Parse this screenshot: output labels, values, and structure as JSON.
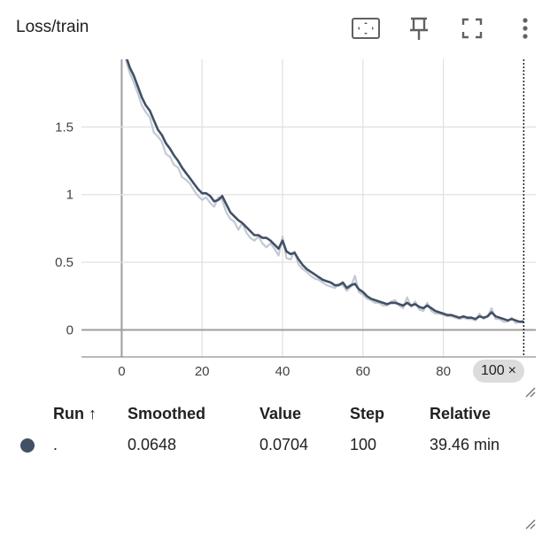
{
  "card": {
    "title": "Loss/train"
  },
  "toolbar": {
    "icons": [
      "fit-domain-icon",
      "pin-icon",
      "fullscreen-icon",
      "more-vert-icon"
    ]
  },
  "hover": {
    "step_label": "100",
    "close_glyph": "×"
  },
  "table": {
    "headers": {
      "run": "Run ↑",
      "smoothed": "Smoothed",
      "value": "Value",
      "step": "Step",
      "relative": "Relative"
    },
    "rows": [
      {
        "run": ".",
        "color": "#425066",
        "smoothed": "0.0648",
        "value": "0.0704",
        "step": "100",
        "relative": "39.46 min"
      }
    ]
  },
  "chart_data": {
    "type": "line",
    "title": "Loss/train",
    "xlabel": "",
    "ylabel": "",
    "xlim": [
      -10,
      103
    ],
    "ylim": [
      -0.2,
      2.0
    ],
    "xticks": [
      "0",
      "20",
      "40",
      "60",
      "80"
    ],
    "yticks": [
      "0",
      "0.5",
      "1",
      "1.5"
    ],
    "grid": true,
    "hover_step": 100,
    "colors": {
      "smoothed": "#425066",
      "raw": "#c3c9d4"
    },
    "series": [
      {
        "role": "smoothed",
        "x": [
          1,
          2,
          3,
          4,
          5,
          6,
          7,
          8,
          9,
          10,
          11,
          12,
          13,
          14,
          15,
          16,
          17,
          18,
          19,
          20,
          21,
          22,
          23,
          24,
          25,
          26,
          27,
          28,
          29,
          30,
          31,
          32,
          33,
          34,
          35,
          36,
          37,
          38,
          39,
          40,
          41,
          42,
          43,
          44,
          45,
          46,
          47,
          48,
          49,
          50,
          51,
          52,
          53,
          54,
          55,
          56,
          57,
          58,
          59,
          60,
          61,
          62,
          63,
          64,
          65,
          66,
          67,
          68,
          69,
          70,
          71,
          72,
          73,
          74,
          75,
          76,
          77,
          78,
          79,
          80,
          81,
          82,
          83,
          84,
          85,
          86,
          87,
          88,
          89,
          90,
          91,
          92,
          93,
          94,
          95,
          96,
          97,
          98,
          99,
          100
        ],
        "values": [
          2.03,
          1.94,
          1.88,
          1.8,
          1.72,
          1.66,
          1.62,
          1.55,
          1.48,
          1.44,
          1.38,
          1.34,
          1.29,
          1.25,
          1.2,
          1.16,
          1.12,
          1.08,
          1.04,
          1.01,
          1.01,
          0.99,
          0.95,
          0.96,
          0.99,
          0.93,
          0.87,
          0.84,
          0.81,
          0.79,
          0.76,
          0.73,
          0.7,
          0.7,
          0.68,
          0.68,
          0.66,
          0.63,
          0.6,
          0.66,
          0.58,
          0.56,
          0.57,
          0.52,
          0.48,
          0.45,
          0.43,
          0.41,
          0.39,
          0.37,
          0.36,
          0.35,
          0.33,
          0.33,
          0.35,
          0.31,
          0.33,
          0.34,
          0.3,
          0.28,
          0.25,
          0.23,
          0.22,
          0.21,
          0.2,
          0.19,
          0.2,
          0.2,
          0.19,
          0.18,
          0.2,
          0.18,
          0.19,
          0.17,
          0.16,
          0.18,
          0.16,
          0.14,
          0.13,
          0.12,
          0.11,
          0.11,
          0.1,
          0.09,
          0.1,
          0.09,
          0.09,
          0.08,
          0.1,
          0.09,
          0.1,
          0.13,
          0.1,
          0.09,
          0.08,
          0.07,
          0.08,
          0.07,
          0.06,
          0.06
        ]
      },
      {
        "role": "raw",
        "x": [
          1,
          2,
          3,
          4,
          5,
          6,
          7,
          8,
          9,
          10,
          11,
          12,
          13,
          14,
          15,
          16,
          17,
          18,
          19,
          20,
          21,
          22,
          23,
          24,
          25,
          26,
          27,
          28,
          29,
          30,
          31,
          32,
          33,
          34,
          35,
          36,
          37,
          38,
          39,
          40,
          41,
          42,
          43,
          44,
          45,
          46,
          47,
          48,
          49,
          50,
          51,
          52,
          53,
          54,
          55,
          56,
          57,
          58,
          59,
          60,
          61,
          62,
          63,
          64,
          65,
          66,
          67,
          68,
          69,
          70,
          71,
          72,
          73,
          74,
          75,
          76,
          77,
          78,
          79,
          80,
          81,
          82,
          83,
          84,
          85,
          86,
          87,
          88,
          89,
          90,
          91,
          92,
          93,
          94,
          95,
          96,
          97,
          98,
          99,
          100
        ],
        "values": [
          2.0,
          1.9,
          1.83,
          1.75,
          1.66,
          1.61,
          1.57,
          1.46,
          1.43,
          1.39,
          1.3,
          1.28,
          1.22,
          1.2,
          1.13,
          1.11,
          1.08,
          1.03,
          0.99,
          0.96,
          0.98,
          0.94,
          0.91,
          0.98,
          0.96,
          0.87,
          0.82,
          0.8,
          0.74,
          0.79,
          0.72,
          0.68,
          0.66,
          0.69,
          0.64,
          0.61,
          0.64,
          0.6,
          0.55,
          0.69,
          0.53,
          0.52,
          0.58,
          0.48,
          0.45,
          0.43,
          0.4,
          0.38,
          0.37,
          0.35,
          0.33,
          0.32,
          0.31,
          0.34,
          0.33,
          0.29,
          0.32,
          0.4,
          0.28,
          0.26,
          0.23,
          0.22,
          0.2,
          0.2,
          0.18,
          0.18,
          0.21,
          0.22,
          0.18,
          0.16,
          0.24,
          0.17,
          0.21,
          0.15,
          0.14,
          0.2,
          0.14,
          0.12,
          0.12,
          0.11,
          0.1,
          0.1,
          0.09,
          0.08,
          0.09,
          0.08,
          0.08,
          0.07,
          0.12,
          0.08,
          0.1,
          0.16,
          0.08,
          0.08,
          0.06,
          0.06,
          0.09,
          0.05,
          0.06,
          0.07
        ]
      }
    ]
  }
}
